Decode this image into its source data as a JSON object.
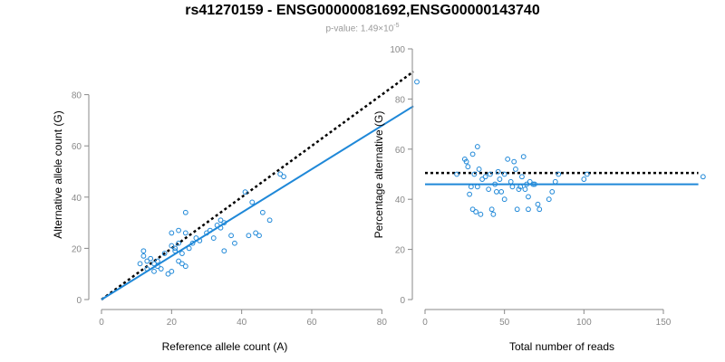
{
  "title": "rs41270159 - ENSG00000081692,ENSG00000143740",
  "subtitle": {
    "prefix": "p-value: 1.49×10",
    "exponent": "-5"
  },
  "colors": {
    "points": "#1f88d8",
    "fit_line": "#1f88d8",
    "reference_line": "#000000",
    "axis": "#888888"
  },
  "chart_data": [
    {
      "type": "scatter",
      "xlabel": "Reference allele count (A)",
      "ylabel": "Alternative allele count (G)",
      "xlim": [
        0,
        90
      ],
      "ylim": [
        0,
        88
      ],
      "xticks": [
        0,
        20,
        40,
        60,
        80
      ],
      "yticks": [
        0,
        20,
        40,
        60,
        80
      ],
      "grid": false,
      "points": [
        [
          11,
          14
        ],
        [
          12,
          19
        ],
        [
          12,
          17
        ],
        [
          13,
          15
        ],
        [
          13,
          12
        ],
        [
          14,
          16
        ],
        [
          15,
          14
        ],
        [
          15,
          11
        ],
        [
          16,
          13
        ],
        [
          16,
          15
        ],
        [
          17,
          12
        ],
        [
          18,
          18
        ],
        [
          19,
          10
        ],
        [
          20,
          11
        ],
        [
          20,
          21
        ],
        [
          20,
          26
        ],
        [
          21,
          19
        ],
        [
          21,
          20
        ],
        [
          22,
          22
        ],
        [
          22,
          27
        ],
        [
          22,
          15
        ],
        [
          23,
          18
        ],
        [
          23,
          14
        ],
        [
          24,
          26
        ],
        [
          24,
          34
        ],
        [
          24,
          13
        ],
        [
          25,
          20
        ],
        [
          26,
          22
        ],
        [
          27,
          24
        ],
        [
          28,
          23
        ],
        [
          30,
          26
        ],
        [
          31,
          27
        ],
        [
          32,
          24
        ],
        [
          33,
          29
        ],
        [
          34,
          31
        ],
        [
          34,
          28
        ],
        [
          35,
          30
        ],
        [
          35,
          19
        ],
        [
          37,
          25
        ],
        [
          38,
          22
        ],
        [
          41,
          42
        ],
        [
          42,
          25
        ],
        [
          43,
          38
        ],
        [
          44,
          26
        ],
        [
          45,
          25
        ],
        [
          46,
          34
        ],
        [
          48,
          31
        ],
        [
          51,
          49
        ],
        [
          52,
          48
        ],
        [
          90,
          85
        ]
      ],
      "fit_line": [
        [
          0,
          0
        ],
        [
          89,
          75.5
        ]
      ],
      "reference_line": [
        [
          0,
          0
        ],
        [
          89,
          89
        ]
      ]
    },
    {
      "type": "scatter",
      "xlabel": "Total number of reads",
      "ylabel": "Percentage alternative (G)",
      "xlim": [
        0,
        175
      ],
      "ylim": [
        0,
        100
      ],
      "xticks": [
        0,
        50,
        100,
        150
      ],
      "yticks": [
        0,
        20,
        40,
        60,
        80,
        100
      ],
      "grid": false,
      "points": [
        [
          20,
          50
        ],
        [
          25,
          56
        ],
        [
          26,
          55
        ],
        [
          27,
          53
        ],
        [
          28,
          42
        ],
        [
          29,
          45
        ],
        [
          30,
          36
        ],
        [
          30,
          58
        ],
        [
          31,
          50
        ],
        [
          32,
          35
        ],
        [
          33,
          61
        ],
        [
          33,
          45
        ],
        [
          34,
          52
        ],
        [
          35,
          34
        ],
        [
          36,
          48
        ],
        [
          38,
          49
        ],
        [
          40,
          44
        ],
        [
          41,
          50
        ],
        [
          42,
          36
        ],
        [
          43,
          34
        ],
        [
          44,
          46
        ],
        [
          45,
          43
        ],
        [
          46,
          51
        ],
        [
          47,
          48
        ],
        [
          48,
          43
        ],
        [
          50,
          50
        ],
        [
          50,
          40
        ],
        [
          52,
          56
        ],
        [
          54,
          47
        ],
        [
          55,
          45
        ],
        [
          56,
          55
        ],
        [
          57,
          52
        ],
        [
          58,
          36
        ],
        [
          59,
          44
        ],
        [
          60,
          45
        ],
        [
          61,
          49
        ],
        [
          62,
          57
        ],
        [
          63,
          44
        ],
        [
          64,
          46
        ],
        [
          65,
          41
        ],
        [
          65,
          36
        ],
        [
          66,
          47
        ],
        [
          68,
          46
        ],
        [
          69,
          46
        ],
        [
          71,
          38
        ],
        [
          72,
          36
        ],
        [
          78,
          40
        ],
        [
          80,
          43
        ],
        [
          82,
          47
        ],
        [
          84,
          50
        ],
        [
          100,
          48
        ],
        [
          102,
          50
        ],
        [
          175,
          49
        ]
      ],
      "fit_line": [
        [
          0,
          46
        ],
        [
          172,
          46
        ]
      ],
      "reference_line": [
        [
          0,
          50.5
        ],
        [
          172,
          50.5
        ]
      ]
    }
  ]
}
